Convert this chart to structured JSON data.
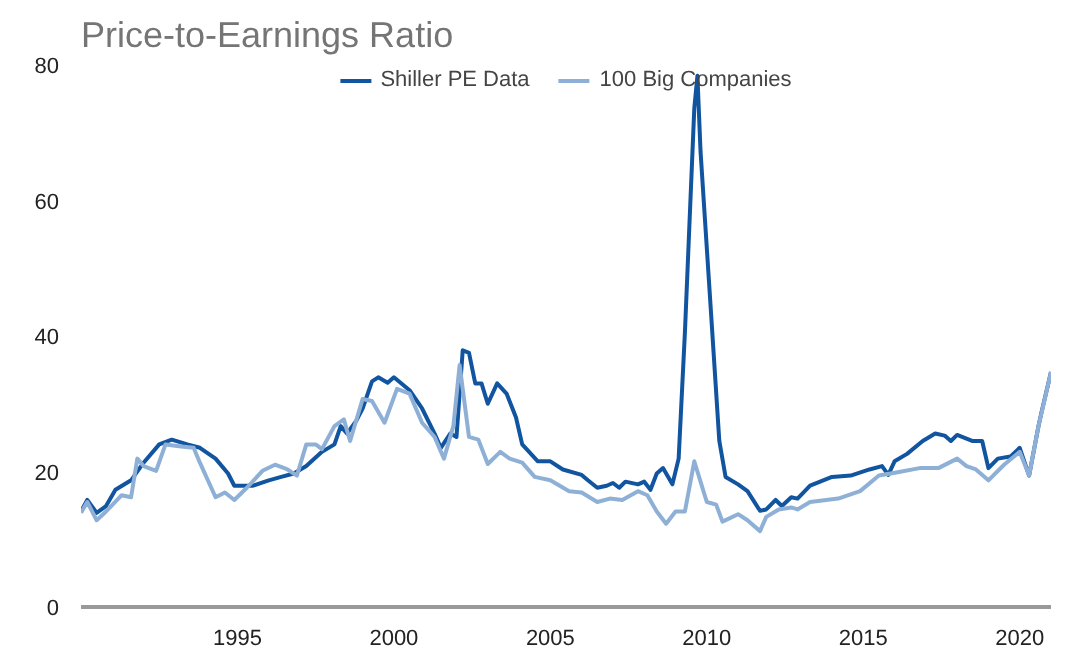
{
  "chart_data": {
    "type": "line",
    "title": "Price-to-Earnings Ratio",
    "xlim": [
      1990,
      2021
    ],
    "xticks": [
      1995,
      2000,
      2005,
      2010,
      2015,
      2020
    ],
    "ylim": [
      0,
      80
    ],
    "yticks": [
      0,
      20,
      40,
      60,
      80
    ],
    "grid": false,
    "legend": "top",
    "marker": "none",
    "line_style": "solid",
    "series": [
      {
        "name": "Shiller PE Data",
        "color": "#1155a0",
        "x": [
          1990.0,
          1990.2,
          1990.5,
          1990.8,
          1991.1,
          1991.6,
          1992.0,
          1992.5,
          1992.9,
          1993.4,
          1993.8,
          1994.3,
          1994.7,
          1994.9,
          1995.5,
          1996.0,
          1996.4,
          1996.8,
          1997.2,
          1997.7,
          1998.1,
          1998.3,
          1998.5,
          1998.8,
          1999.0,
          1999.3,
          1999.5,
          1999.8,
          2000.0,
          2000.5,
          2000.9,
          2001.3,
          2001.5,
          2001.8,
          2002.0,
          2002.2,
          2002.4,
          2002.6,
          2002.8,
          2003.0,
          2003.3,
          2003.6,
          2003.9,
          2004.1,
          2004.6,
          2005.0,
          2005.4,
          2006.0,
          2006.2,
          2006.5,
          2006.8,
          2007.0,
          2007.2,
          2007.4,
          2007.8,
          2008.0,
          2008.2,
          2008.4,
          2008.6,
          2008.9,
          2009.1,
          2009.3,
          2009.6,
          2009.7,
          2009.8,
          2010.1,
          2010.4,
          2010.6,
          2011.0,
          2011.3,
          2011.7,
          2011.9,
          2012.2,
          2012.4,
          2012.7,
          2012.9,
          2013.3,
          2014.0,
          2014.6,
          2015.2,
          2015.6,
          2015.8,
          2016.0,
          2016.4,
          2016.9,
          2017.3,
          2017.6,
          2017.8,
          2018.0,
          2018.5,
          2018.8,
          2019.0,
          2019.3,
          2019.7,
          2020.0,
          2020.3,
          2020.6,
          2020.7,
          2021.0
        ],
        "values": [
          14.1,
          15.8,
          13.9,
          14.9,
          17.3,
          18.7,
          21.3,
          24,
          24.7,
          24,
          23.5,
          21.9,
          19.7,
          17.9,
          17.9,
          18.7,
          19.2,
          19.7,
          20.8,
          22.9,
          24,
          26.7,
          25.6,
          27.5,
          29.3,
          33.3,
          33.9,
          33.1,
          33.9,
          32,
          29.3,
          25.6,
          23.5,
          25.6,
          25.1,
          37.9,
          37.5,
          33,
          33,
          30,
          33,
          31.5,
          28,
          24,
          21.5,
          21.5,
          20.3,
          19.5,
          18.7,
          17.6,
          17.9,
          18.3,
          17.6,
          18.5,
          18.1,
          18.5,
          17.3,
          19.7,
          20.5,
          18.1,
          21.9,
          40.5,
          73.6,
          78.4,
          67.2,
          45.9,
          24.5,
          19.2,
          18.1,
          17.1,
          14.2,
          14.4,
          15.8,
          14.9,
          16.2,
          16,
          17.9,
          19.2,
          19.4,
          20.3,
          20.8,
          19.5,
          21.5,
          22.6,
          24.5,
          25.6,
          25.3,
          24.5,
          25.4,
          24.5,
          24.5,
          20.5,
          21.9,
          22.2,
          23.5,
          19.4,
          26.7,
          28.8,
          34.7
        ]
      },
      {
        "name": "100 Big Companies",
        "color": "#8eb0d6",
        "x": [
          1990.0,
          1990.2,
          1990.5,
          1990.8,
          1991.3,
          1991.6,
          1991.8,
          1992.0,
          1992.4,
          1992.7,
          1993.2,
          1993.6,
          1993.8,
          1994.3,
          1994.6,
          1994.9,
          1995.3,
          1995.8,
          1996.2,
          1996.6,
          1996.9,
          1997.2,
          1997.5,
          1997.7,
          1998.1,
          1998.4,
          1998.6,
          1999.0,
          1999.3,
          1999.7,
          2000.1,
          2000.5,
          2000.9,
          2001.3,
          2001.6,
          2001.9,
          2002.1,
          2002.4,
          2002.7,
          2003.0,
          2003.4,
          2003.7,
          2004.1,
          2004.5,
          2005.0,
          2005.6,
          2006.0,
          2006.5,
          2006.9,
          2007.3,
          2007.8,
          2008.1,
          2008.4,
          2008.7,
          2009.0,
          2009.3,
          2009.6,
          2010.0,
          2010.3,
          2010.5,
          2011.0,
          2011.3,
          2011.7,
          2011.9,
          2012.3,
          2012.7,
          2012.9,
          2013.3,
          2014.2,
          2014.9,
          2015.5,
          2016.1,
          2016.8,
          2017.4,
          2018.0,
          2018.3,
          2018.6,
          2019.0,
          2019.5,
          2020.0,
          2020.3,
          2020.6,
          2021.0
        ],
        "values": [
          13.9,
          15.5,
          12.8,
          14.1,
          16.5,
          16.2,
          21.9,
          20.8,
          20.1,
          24,
          23.7,
          23.5,
          21.3,
          16.2,
          16.9,
          15.8,
          17.6,
          20.1,
          21,
          20.3,
          19.4,
          24,
          24,
          23.3,
          26.7,
          27.7,
          24.5,
          30.7,
          30.4,
          27.2,
          32.2,
          31.5,
          27.2,
          25.1,
          21.9,
          26.7,
          35.7,
          25.1,
          24.7,
          21.1,
          22.9,
          21.9,
          21.3,
          19.2,
          18.7,
          17.1,
          16.9,
          15.5,
          16,
          15.8,
          17.1,
          16.5,
          14.1,
          12.3,
          14.1,
          14.1,
          21.5,
          15.5,
          15.1,
          12.6,
          13.7,
          12.8,
          11.2,
          13.3,
          14.4,
          14.7,
          14.4,
          15.5,
          16,
          17.1,
          19.4,
          19.9,
          20.5,
          20.5,
          21.9,
          20.8,
          20.3,
          18.7,
          21,
          22.9,
          19.4,
          26.7,
          34.7
        ]
      }
    ]
  }
}
